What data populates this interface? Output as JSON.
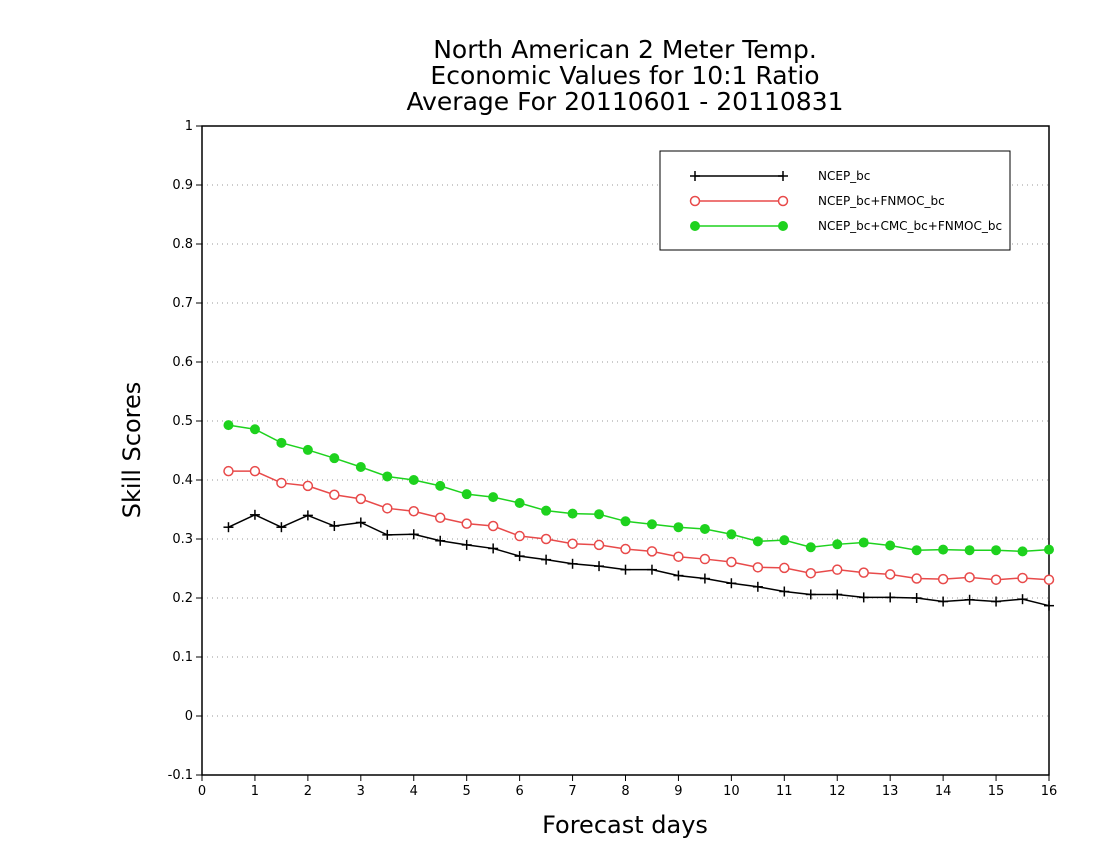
{
  "chart_data": {
    "type": "line",
    "title": [
      "North American 2 Meter Temp.",
      "Economic Values for 10:1 Ratio",
      "Average For 20110601 - 20110831"
    ],
    "xlabel": "Forecast days",
    "ylabel": "Skill Scores",
    "xlim": [
      0,
      16
    ],
    "ylim": [
      -0.1,
      1
    ],
    "xticks": [
      "0",
      "1",
      "2",
      "3",
      "4",
      "5",
      "6",
      "7",
      "8",
      "9",
      "10",
      "11",
      "12",
      "13",
      "14",
      "15",
      "16"
    ],
    "yticks": [
      "-0.1",
      "0",
      "0.1",
      "0.2",
      "0.3",
      "0.4",
      "0.5",
      "0.6",
      "0.7",
      "0.8",
      "0.9",
      "1"
    ],
    "grid": "horizontal dotted",
    "legend_position": "top-right",
    "x": [
      0.5,
      1,
      1.5,
      2,
      2.5,
      3,
      3.5,
      4,
      4.5,
      5,
      5.5,
      6,
      6.5,
      7,
      7.5,
      8,
      8.5,
      9,
      9.5,
      10,
      10.5,
      11,
      11.5,
      12,
      12.5,
      13,
      13.5,
      14,
      14.5,
      15,
      15.5,
      16
    ],
    "series": [
      {
        "name": "NCEP_bc",
        "color": "#000000",
        "marker": "plus",
        "values": [
          0.32,
          0.341,
          0.32,
          0.34,
          0.322,
          0.328,
          0.307,
          0.308,
          0.297,
          0.29,
          0.284,
          0.271,
          0.265,
          0.258,
          0.254,
          0.248,
          0.248,
          0.238,
          0.233,
          0.225,
          0.219,
          0.211,
          0.206,
          0.206,
          0.201,
          0.201,
          0.2,
          0.194,
          0.197,
          0.194,
          0.198,
          0.187
        ]
      },
      {
        "name": "NCEP_bc+FNMOC_bc",
        "color": "#e84a4a",
        "marker": "open-circle",
        "values": [
          0.415,
          0.415,
          0.395,
          0.39,
          0.375,
          0.368,
          0.352,
          0.347,
          0.336,
          0.326,
          0.322,
          0.305,
          0.3,
          0.292,
          0.29,
          0.283,
          0.279,
          0.27,
          0.266,
          0.261,
          0.252,
          0.251,
          0.242,
          0.248,
          0.243,
          0.24,
          0.233,
          0.232,
          0.235,
          0.231,
          0.234,
          0.231
        ]
      },
      {
        "name": "NCEP_bc+CMC_bc+FNMOC_bc",
        "color": "#1ed21e",
        "marker": "filled-circle",
        "values": [
          0.493,
          0.486,
          0.463,
          0.451,
          0.437,
          0.422,
          0.406,
          0.4,
          0.39,
          0.376,
          0.371,
          0.361,
          0.348,
          0.343,
          0.342,
          0.33,
          0.325,
          0.32,
          0.317,
          0.308,
          0.296,
          0.298,
          0.286,
          0.291,
          0.294,
          0.289,
          0.281,
          0.282,
          0.281,
          0.281,
          0.279,
          0.282
        ]
      }
    ]
  }
}
